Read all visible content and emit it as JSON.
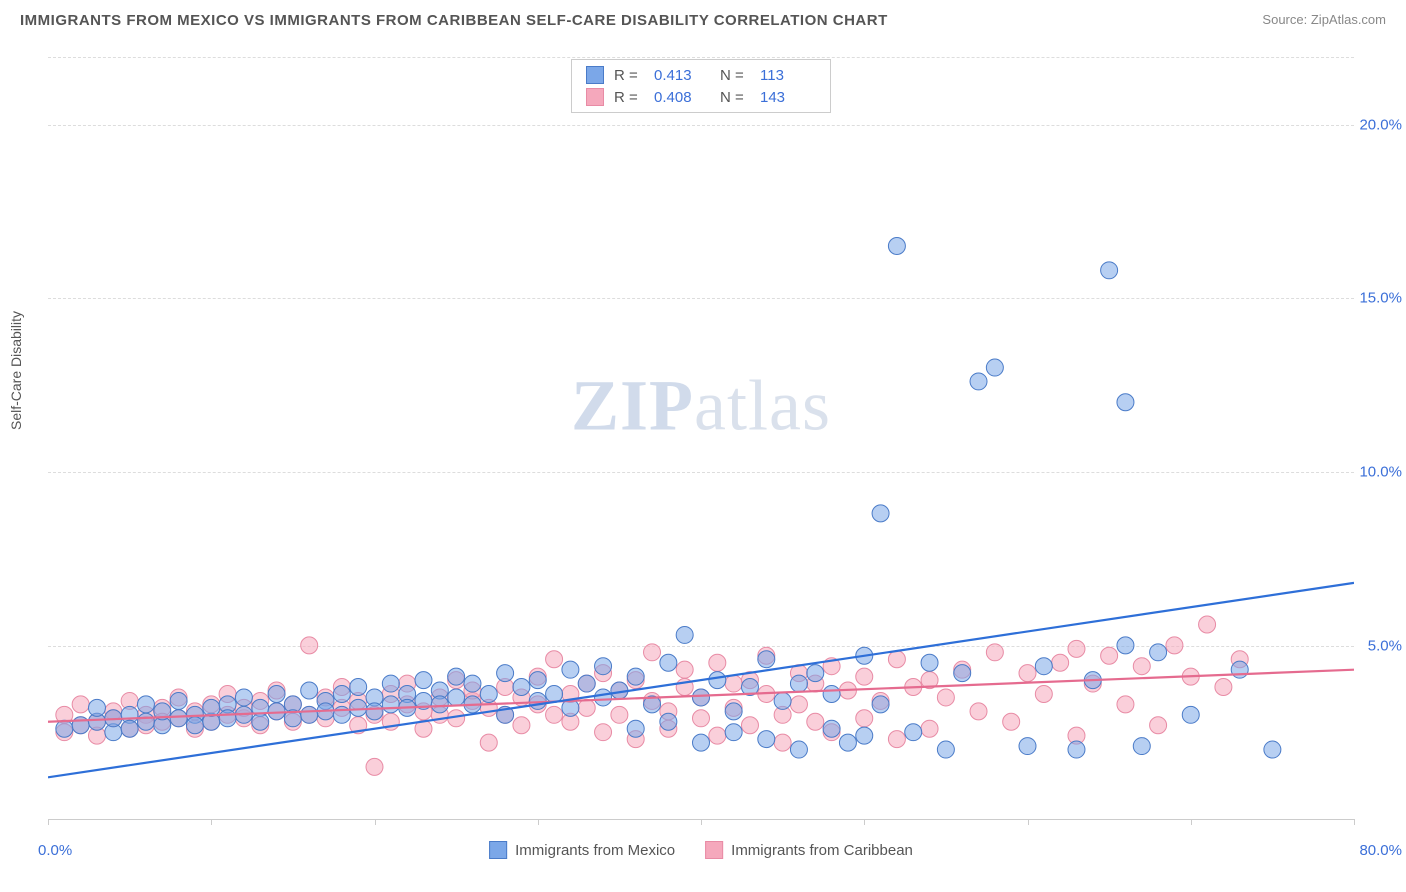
{
  "title": "IMMIGRANTS FROM MEXICO VS IMMIGRANTS FROM CARIBBEAN SELF-CARE DISABILITY CORRELATION CHART",
  "source_label": "Source:",
  "source_value": "ZipAtlas.com",
  "y_axis_label": "Self-Care Disability",
  "watermark_zip": "ZIP",
  "watermark_atlas": "atlas",
  "chart": {
    "type": "scatter",
    "xlim": [
      0,
      80
    ],
    "ylim": [
      0,
      22
    ],
    "x_ticks": [
      0,
      10,
      20,
      30,
      40,
      50,
      60,
      70,
      80
    ],
    "x_range_min": "0.0%",
    "x_range_max": "80.0%",
    "y_ticks": [
      {
        "v": 5,
        "label": "5.0%"
      },
      {
        "v": 10,
        "label": "10.0%"
      },
      {
        "v": 15,
        "label": "15.0%"
      },
      {
        "v": 20,
        "label": "20.0%"
      }
    ],
    "grid_color": "#dddddd",
    "marker_radius": 8.5,
    "marker_opacity": 0.55,
    "line_width": 2.2,
    "series": [
      {
        "name": "Immigrants from Mexico",
        "color": "#7ba7e8",
        "stroke": "#4a7bc8",
        "line_color": "#2e6fd8",
        "R": "0.413",
        "N": "113",
        "trend": {
          "x1": 0,
          "y1": 1.2,
          "x2": 80,
          "y2": 6.8
        },
        "points": [
          [
            1,
            2.6
          ],
          [
            2,
            2.7
          ],
          [
            3,
            2.8
          ],
          [
            3,
            3.2
          ],
          [
            4,
            2.5
          ],
          [
            4,
            2.9
          ],
          [
            5,
            3.0
          ],
          [
            5,
            2.6
          ],
          [
            6,
            2.8
          ],
          [
            6,
            3.3
          ],
          [
            7,
            2.7
          ],
          [
            7,
            3.1
          ],
          [
            8,
            2.9
          ],
          [
            8,
            3.4
          ],
          [
            9,
            3.0
          ],
          [
            9,
            2.7
          ],
          [
            10,
            2.8
          ],
          [
            10,
            3.2
          ],
          [
            11,
            3.3
          ],
          [
            11,
            2.9
          ],
          [
            12,
            3.0
          ],
          [
            12,
            3.5
          ],
          [
            13,
            3.2
          ],
          [
            13,
            2.8
          ],
          [
            14,
            3.1
          ],
          [
            14,
            3.6
          ],
          [
            15,
            3.3
          ],
          [
            15,
            2.9
          ],
          [
            16,
            3.0
          ],
          [
            16,
            3.7
          ],
          [
            17,
            3.4
          ],
          [
            17,
            3.1
          ],
          [
            18,
            3.6
          ],
          [
            18,
            3.0
          ],
          [
            19,
            3.2
          ],
          [
            19,
            3.8
          ],
          [
            20,
            3.5
          ],
          [
            20,
            3.1
          ],
          [
            21,
            3.3
          ],
          [
            21,
            3.9
          ],
          [
            22,
            3.6
          ],
          [
            22,
            3.2
          ],
          [
            23,
            3.4
          ],
          [
            23,
            4.0
          ],
          [
            24,
            3.7
          ],
          [
            24,
            3.3
          ],
          [
            25,
            3.5
          ],
          [
            25,
            4.1
          ],
          [
            26,
            3.3
          ],
          [
            26,
            3.9
          ],
          [
            27,
            3.6
          ],
          [
            28,
            3.0
          ],
          [
            28,
            4.2
          ],
          [
            29,
            3.8
          ],
          [
            30,
            3.4
          ],
          [
            30,
            4.0
          ],
          [
            31,
            3.6
          ],
          [
            32,
            4.3
          ],
          [
            32,
            3.2
          ],
          [
            33,
            3.9
          ],
          [
            34,
            3.5
          ],
          [
            34,
            4.4
          ],
          [
            35,
            3.7
          ],
          [
            36,
            4.1
          ],
          [
            36,
            2.6
          ],
          [
            37,
            3.3
          ],
          [
            38,
            4.5
          ],
          [
            38,
            2.8
          ],
          [
            39,
            5.3
          ],
          [
            40,
            3.5
          ],
          [
            40,
            2.2
          ],
          [
            41,
            4.0
          ],
          [
            42,
            2.5
          ],
          [
            42,
            3.1
          ],
          [
            43,
            3.8
          ],
          [
            44,
            4.6
          ],
          [
            44,
            2.3
          ],
          [
            45,
            3.4
          ],
          [
            46,
            2.0
          ],
          [
            46,
            3.9
          ],
          [
            47,
            4.2
          ],
          [
            48,
            2.6
          ],
          [
            48,
            3.6
          ],
          [
            49,
            2.2
          ],
          [
            50,
            4.7
          ],
          [
            50,
            2.4
          ],
          [
            51,
            8.8
          ],
          [
            51,
            3.3
          ],
          [
            52,
            16.5
          ],
          [
            53,
            2.5
          ],
          [
            54,
            4.5
          ],
          [
            55,
            2.0
          ],
          [
            56,
            4.2
          ],
          [
            57,
            12.6
          ],
          [
            58,
            13.0
          ],
          [
            60,
            2.1
          ],
          [
            61,
            4.4
          ],
          [
            63,
            2.0
          ],
          [
            64,
            4.0
          ],
          [
            65,
            15.8
          ],
          [
            66,
            12.0
          ],
          [
            66,
            5.0
          ],
          [
            67,
            2.1
          ],
          [
            68,
            4.8
          ],
          [
            70,
            3.0
          ],
          [
            73,
            4.3
          ],
          [
            75,
            2.0
          ]
        ]
      },
      {
        "name": "Immigrants from Caribbean",
        "color": "#f5a8bc",
        "stroke": "#e88ba5",
        "line_color": "#e56b8f",
        "R": "0.408",
        "N": "143",
        "trend": {
          "x1": 0,
          "y1": 2.8,
          "x2": 80,
          "y2": 4.3
        },
        "points": [
          [
            1,
            2.5
          ],
          [
            1,
            3.0
          ],
          [
            2,
            2.7
          ],
          [
            2,
            3.3
          ],
          [
            3,
            2.8
          ],
          [
            3,
            2.4
          ],
          [
            4,
            3.1
          ],
          [
            4,
            2.9
          ],
          [
            5,
            2.6
          ],
          [
            5,
            3.4
          ],
          [
            6,
            3.0
          ],
          [
            6,
            2.7
          ],
          [
            7,
            3.2
          ],
          [
            7,
            2.8
          ],
          [
            8,
            2.9
          ],
          [
            8,
            3.5
          ],
          [
            9,
            3.1
          ],
          [
            9,
            2.6
          ],
          [
            10,
            2.8
          ],
          [
            10,
            3.3
          ],
          [
            11,
            3.0
          ],
          [
            11,
            3.6
          ],
          [
            12,
            2.9
          ],
          [
            12,
            3.2
          ],
          [
            13,
            3.4
          ],
          [
            13,
            2.7
          ],
          [
            14,
            3.1
          ],
          [
            14,
            3.7
          ],
          [
            15,
            2.8
          ],
          [
            15,
            3.3
          ],
          [
            16,
            5.0
          ],
          [
            16,
            3.0
          ],
          [
            17,
            3.5
          ],
          [
            17,
            2.9
          ],
          [
            18,
            3.2
          ],
          [
            18,
            3.8
          ],
          [
            19,
            3.4
          ],
          [
            19,
            2.7
          ],
          [
            20,
            3.0
          ],
          [
            20,
            1.5
          ],
          [
            21,
            3.6
          ],
          [
            21,
            2.8
          ],
          [
            22,
            3.3
          ],
          [
            22,
            3.9
          ],
          [
            23,
            3.1
          ],
          [
            23,
            2.6
          ],
          [
            24,
            3.5
          ],
          [
            24,
            3.0
          ],
          [
            25,
            4.0
          ],
          [
            25,
            2.9
          ],
          [
            26,
            3.4
          ],
          [
            26,
            3.7
          ],
          [
            27,
            3.2
          ],
          [
            27,
            2.2
          ],
          [
            28,
            3.8
          ],
          [
            28,
            3.0
          ],
          [
            29,
            3.5
          ],
          [
            29,
            2.7
          ],
          [
            30,
            4.1
          ],
          [
            30,
            3.3
          ],
          [
            31,
            3.0
          ],
          [
            31,
            4.6
          ],
          [
            32,
            3.6
          ],
          [
            32,
            2.8
          ],
          [
            33,
            3.9
          ],
          [
            33,
            3.2
          ],
          [
            34,
            4.2
          ],
          [
            34,
            2.5
          ],
          [
            35,
            3.7
          ],
          [
            35,
            3.0
          ],
          [
            36,
            4.0
          ],
          [
            36,
            2.3
          ],
          [
            37,
            3.4
          ],
          [
            37,
            4.8
          ],
          [
            38,
            3.1
          ],
          [
            38,
            2.6
          ],
          [
            39,
            4.3
          ],
          [
            39,
            3.8
          ],
          [
            40,
            3.5
          ],
          [
            40,
            2.9
          ],
          [
            41,
            4.5
          ],
          [
            41,
            2.4
          ],
          [
            42,
            3.2
          ],
          [
            42,
            3.9
          ],
          [
            43,
            4.0
          ],
          [
            43,
            2.7
          ],
          [
            44,
            3.6
          ],
          [
            44,
            4.7
          ],
          [
            45,
            3.0
          ],
          [
            45,
            2.2
          ],
          [
            46,
            4.2
          ],
          [
            46,
            3.3
          ],
          [
            47,
            2.8
          ],
          [
            47,
            3.9
          ],
          [
            48,
            4.4
          ],
          [
            48,
            2.5
          ],
          [
            49,
            3.7
          ],
          [
            50,
            4.1
          ],
          [
            50,
            2.9
          ],
          [
            51,
            3.4
          ],
          [
            52,
            4.6
          ],
          [
            52,
            2.3
          ],
          [
            53,
            3.8
          ],
          [
            54,
            4.0
          ],
          [
            54,
            2.6
          ],
          [
            55,
            3.5
          ],
          [
            56,
            4.3
          ],
          [
            57,
            3.1
          ],
          [
            58,
            4.8
          ],
          [
            59,
            2.8
          ],
          [
            60,
            4.2
          ],
          [
            61,
            3.6
          ],
          [
            62,
            4.5
          ],
          [
            63,
            2.4
          ],
          [
            63,
            4.9
          ],
          [
            64,
            3.9
          ],
          [
            65,
            4.7
          ],
          [
            66,
            3.3
          ],
          [
            67,
            4.4
          ],
          [
            68,
            2.7
          ],
          [
            69,
            5.0
          ],
          [
            70,
            4.1
          ],
          [
            71,
            5.6
          ],
          [
            72,
            3.8
          ],
          [
            73,
            4.6
          ]
        ]
      }
    ]
  }
}
